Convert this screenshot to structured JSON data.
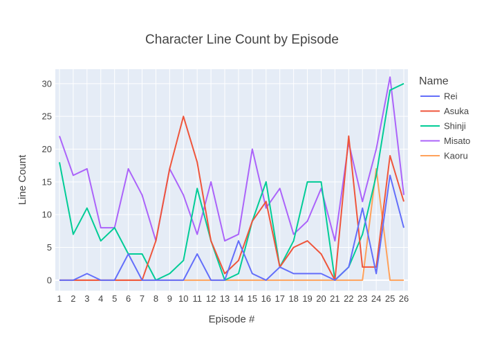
{
  "chart_data": {
    "type": "line",
    "title": "Character Line Count by Episode",
    "xlabel": "Episode #",
    "ylabel": "Line Count",
    "legend_title": "Name",
    "legend_position": "right",
    "grid": true,
    "xlim": [
      1,
      26
    ],
    "ylim": [
      -1.6,
      32.2
    ],
    "yticks": [
      0,
      5,
      10,
      15,
      20,
      25,
      30
    ],
    "x": [
      1,
      2,
      3,
      4,
      5,
      6,
      7,
      8,
      9,
      10,
      11,
      12,
      13,
      14,
      15,
      16,
      17,
      18,
      19,
      20,
      21,
      22,
      23,
      24,
      25,
      26
    ],
    "series": [
      {
        "name": "Rei",
        "color": "#636efa",
        "values": [
          0,
          0,
          1,
          0,
          0,
          4,
          0,
          0,
          0,
          0,
          4,
          0,
          0,
          6,
          1,
          0,
          2,
          1,
          1,
          1,
          0,
          2,
          11,
          1,
          16,
          8
        ]
      },
      {
        "name": "Asuka",
        "color": "#ef553b",
        "values": [
          0,
          0,
          0,
          0,
          0,
          0,
          0,
          6,
          17,
          25,
          18,
          6,
          1,
          3,
          9,
          12,
          2,
          5,
          6,
          4,
          0,
          22,
          2,
          2,
          19,
          12
        ]
      },
      {
        "name": "Shinji",
        "color": "#00cc96",
        "values": [
          18,
          7,
          11,
          6,
          8,
          4,
          4,
          0,
          1,
          3,
          14,
          6,
          0,
          1,
          9,
          15,
          2,
          6,
          15,
          15,
          0,
          2,
          7,
          16,
          29,
          30
        ]
      },
      {
        "name": "Misato",
        "color": "#ab63fa",
        "values": [
          22,
          16,
          17,
          8,
          8,
          17,
          13,
          6,
          17,
          13,
          7,
          15,
          6,
          7,
          20,
          11,
          14,
          7,
          9,
          14,
          6,
          21,
          12,
          20,
          31,
          13
        ]
      },
      {
        "name": "Kaoru",
        "color": "#ffa15a",
        "values": [
          0,
          0,
          0,
          0,
          0,
          0,
          0,
          0,
          0,
          0,
          0,
          0,
          0,
          0,
          0,
          0,
          0,
          0,
          0,
          0,
          0,
          0,
          0,
          17,
          0,
          0
        ]
      }
    ]
  }
}
